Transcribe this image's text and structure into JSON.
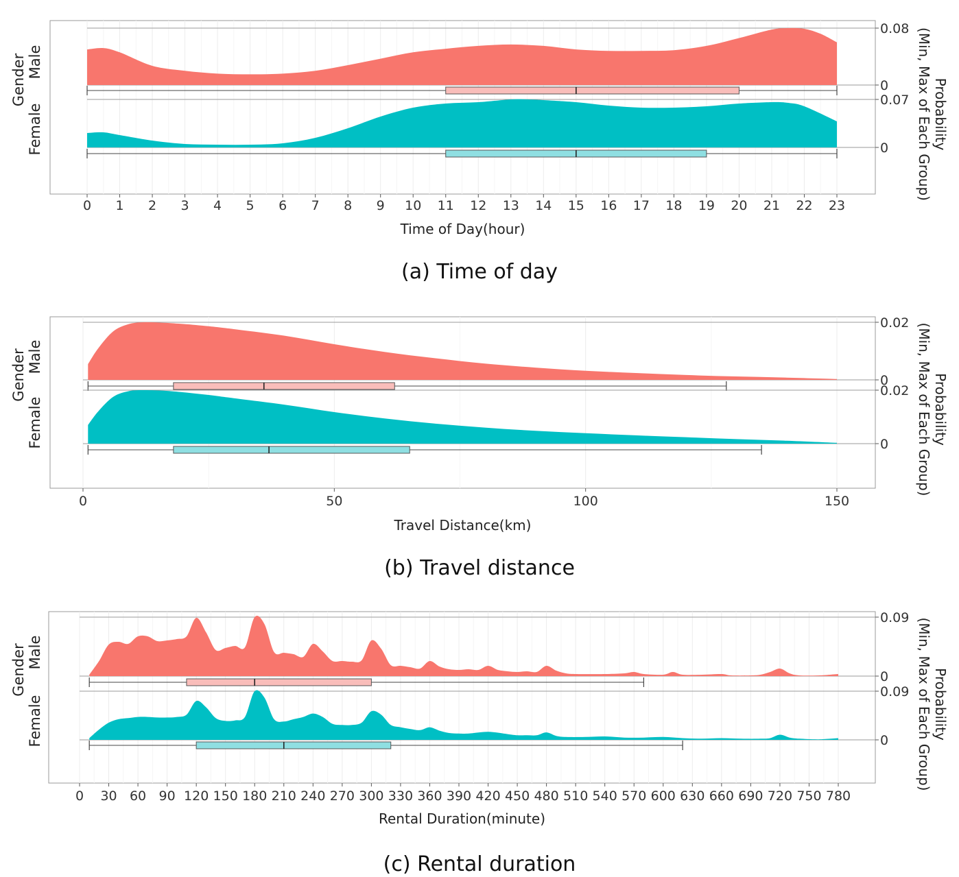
{
  "colors": {
    "male": "#F8766D",
    "female": "#00BFC4",
    "male_box": "#F9BDBA",
    "female_box": "#8FDFE2"
  },
  "y_axis": {
    "group_title": "Gender",
    "right_label": "Probability\n(Min, Max of Each Group)"
  },
  "chart_data": [
    {
      "type": "area",
      "caption": "(a) Time of day",
      "xlabel": "Time of Day(hour)",
      "xlim": [
        0,
        23
      ],
      "xticks": [
        0,
        1,
        2,
        3,
        4,
        5,
        6,
        7,
        8,
        9,
        10,
        11,
        12,
        13,
        14,
        15,
        16,
        17,
        18,
        19,
        20,
        21,
        22,
        23
      ],
      "series": [
        {
          "name": "Male",
          "ymax_label": "0.08",
          "ymin_label": "0",
          "x": [
            0,
            0.5,
            1,
            2,
            3,
            4,
            5,
            6,
            7,
            8,
            9,
            10,
            11,
            12,
            13,
            14,
            15,
            16,
            17,
            18,
            19,
            20,
            21,
            21.5,
            22,
            22.5,
            23
          ],
          "y": [
            0.05,
            0.052,
            0.046,
            0.027,
            0.02,
            0.016,
            0.015,
            0.016,
            0.02,
            0.028,
            0.037,
            0.046,
            0.051,
            0.055,
            0.057,
            0.055,
            0.05,
            0.048,
            0.048,
            0.049,
            0.055,
            0.066,
            0.078,
            0.08,
            0.079,
            0.072,
            0.06
          ],
          "box": {
            "min": 0,
            "q1": 11,
            "median": 15,
            "q3": 20,
            "max": 23
          }
        },
        {
          "name": "Female",
          "ymax_label": "0.07",
          "ymin_label": "0",
          "x": [
            0,
            0.5,
            1,
            2,
            3,
            4,
            5,
            6,
            7,
            8,
            9,
            10,
            11,
            12,
            13,
            13.5,
            14,
            15,
            16,
            17,
            18,
            19,
            20,
            21,
            21.5,
            22,
            23
          ],
          "y": [
            0.021,
            0.022,
            0.018,
            0.01,
            0.005,
            0.004,
            0.004,
            0.006,
            0.014,
            0.028,
            0.045,
            0.058,
            0.064,
            0.066,
            0.07,
            0.07,
            0.069,
            0.066,
            0.061,
            0.058,
            0.058,
            0.06,
            0.064,
            0.066,
            0.065,
            0.06,
            0.038
          ],
          "box": {
            "min": 0,
            "q1": 11,
            "median": 15,
            "q3": 19,
            "max": 23
          }
        }
      ]
    },
    {
      "type": "area",
      "caption": "(b) Travel distance",
      "xlabel": "Travel Distance(km)",
      "xlim": [
        0,
        150
      ],
      "xticks": [
        0,
        50,
        100,
        150
      ],
      "series": [
        {
          "name": "Male",
          "ymax_label": "0.02",
          "ymin_label": "0",
          "x": [
            1,
            3,
            6,
            9,
            12,
            16,
            20,
            25,
            30,
            40,
            50,
            60,
            70,
            80,
            90,
            100,
            110,
            120,
            130,
            140,
            150
          ],
          "y": [
            0.0055,
            0.011,
            0.017,
            0.0195,
            0.0202,
            0.02,
            0.0196,
            0.0188,
            0.0178,
            0.0155,
            0.0125,
            0.0098,
            0.0076,
            0.0057,
            0.0043,
            0.0032,
            0.0024,
            0.0017,
            0.0012,
            0.0008,
            0.0003
          ],
          "box": {
            "min": 1,
            "q1": 18,
            "median": 36,
            "q3": 62,
            "max": 128
          }
        },
        {
          "name": "Female",
          "ymax_label": "0.02",
          "ymin_label": "0",
          "x": [
            1,
            3,
            6,
            9,
            12,
            16,
            20,
            25,
            30,
            40,
            50,
            60,
            70,
            80,
            90,
            100,
            110,
            120,
            130,
            140,
            150
          ],
          "y": [
            0.007,
            0.012,
            0.0175,
            0.0196,
            0.02,
            0.0198,
            0.0192,
            0.0182,
            0.017,
            0.0146,
            0.0118,
            0.0094,
            0.0075,
            0.006,
            0.0048,
            0.0039,
            0.0031,
            0.0024,
            0.0017,
            0.0011,
            0.0003
          ],
          "box": {
            "min": 1,
            "q1": 18,
            "median": 37,
            "q3": 65,
            "max": 135
          }
        }
      ]
    },
    {
      "type": "area",
      "caption": "(c) Rental duration",
      "xlabel": "Rental Duration(minute)",
      "xlim": [
        0,
        780
      ],
      "xticks": [
        0,
        30,
        60,
        90,
        120,
        150,
        180,
        210,
        240,
        270,
        300,
        330,
        360,
        390,
        420,
        450,
        480,
        510,
        540,
        570,
        600,
        630,
        660,
        690,
        720,
        750,
        780
      ],
      "series": [
        {
          "name": "Male",
          "ymax_label": "0.09",
          "ymin_label": "0",
          "x": [
            10,
            20,
            30,
            40,
            50,
            60,
            70,
            80,
            90,
            100,
            110,
            120,
            130,
            140,
            150,
            160,
            170,
            180,
            190,
            200,
            210,
            220,
            230,
            240,
            250,
            260,
            270,
            280,
            290,
            300,
            310,
            320,
            330,
            340,
            350,
            360,
            370,
            380,
            390,
            400,
            410,
            420,
            430,
            440,
            450,
            460,
            470,
            480,
            490,
            500,
            510,
            540,
            560,
            570,
            580,
            600,
            610,
            620,
            640,
            660,
            670,
            690,
            700,
            710,
            720,
            730,
            740,
            760,
            780
          ],
          "y": [
            0.002,
            0.022,
            0.046,
            0.05,
            0.047,
            0.058,
            0.058,
            0.051,
            0.052,
            0.054,
            0.058,
            0.085,
            0.064,
            0.038,
            0.041,
            0.044,
            0.042,
            0.086,
            0.076,
            0.035,
            0.034,
            0.032,
            0.028,
            0.047,
            0.036,
            0.022,
            0.022,
            0.021,
            0.023,
            0.052,
            0.04,
            0.016,
            0.015,
            0.013,
            0.011,
            0.022,
            0.014,
            0.01,
            0.009,
            0.01,
            0.009,
            0.015,
            0.009,
            0.007,
            0.006,
            0.007,
            0.006,
            0.015,
            0.008,
            0.004,
            0.003,
            0.003,
            0.004,
            0.006,
            0.003,
            0.002,
            0.006,
            0.002,
            0.002,
            0.003,
            0.001,
            0.001,
            0.002,
            0.006,
            0.011,
            0.004,
            0.001,
            0.001,
            0.003
          ],
          "box": {
            "min": 10,
            "q1": 110,
            "median": 180,
            "q3": 300,
            "max": 580
          }
        },
        {
          "name": "Female",
          "ymax_label": "0.09",
          "ymin_label": "0",
          "x": [
            10,
            20,
            30,
            40,
            50,
            60,
            70,
            80,
            90,
            100,
            110,
            120,
            130,
            140,
            150,
            160,
            170,
            180,
            190,
            200,
            210,
            220,
            230,
            240,
            250,
            260,
            270,
            280,
            290,
            300,
            310,
            320,
            330,
            340,
            350,
            360,
            370,
            380,
            390,
            400,
            420,
            440,
            450,
            460,
            470,
            480,
            490,
            500,
            520,
            540,
            560,
            580,
            600,
            620,
            640,
            660,
            680,
            700,
            710,
            720,
            730,
            740,
            760,
            780
          ],
          "y": [
            0.003,
            0.018,
            0.03,
            0.036,
            0.038,
            0.04,
            0.04,
            0.039,
            0.039,
            0.04,
            0.044,
            0.068,
            0.057,
            0.038,
            0.033,
            0.034,
            0.04,
            0.085,
            0.074,
            0.036,
            0.032,
            0.036,
            0.04,
            0.046,
            0.04,
            0.028,
            0.026,
            0.026,
            0.03,
            0.05,
            0.044,
            0.026,
            0.022,
            0.019,
            0.017,
            0.022,
            0.016,
            0.012,
            0.011,
            0.011,
            0.014,
            0.01,
            0.008,
            0.008,
            0.008,
            0.013,
            0.007,
            0.005,
            0.005,
            0.006,
            0.004,
            0.004,
            0.005,
            0.003,
            0.002,
            0.003,
            0.002,
            0.002,
            0.003,
            0.009,
            0.004,
            0.002,
            0.001,
            0.003
          ],
          "box": {
            "min": 10,
            "q1": 120,
            "median": 210,
            "q3": 320,
            "max": 620
          }
        }
      ]
    }
  ]
}
